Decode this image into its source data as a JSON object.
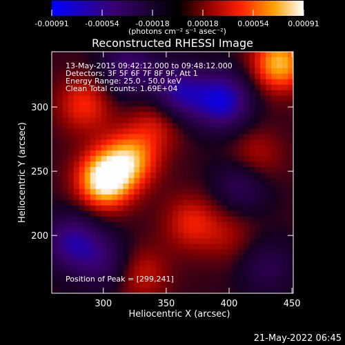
{
  "colorbar": {
    "ticks": [
      "-0.00091",
      "-0.00054",
      "-0.00018",
      "0.00018",
      "0.00054",
      "0.00091"
    ],
    "units": "(photons cm⁻² s⁻¹ asec⁻²)"
  },
  "chart_data": {
    "type": "heatmap",
    "title": "Reconstructed RHESSI Image",
    "xlabel": "Heliocentric X (arcsec)",
    "ylabel": "Heliocentric Y (arcsec)",
    "xlim": [
      259,
      451
    ],
    "ylim": [
      155,
      343
    ],
    "x_ticks": [
      300,
      350,
      400,
      450
    ],
    "y_ticks": [
      200,
      250,
      300
    ],
    "clim": [
      -0.00091,
      0.00091
    ],
    "peak": [
      299,
      241
    ],
    "annotations": [
      "13-May-2015 09:42:12.000 to 09:48:12.000",
      "Detectors: 3F 5F 6F 7F 8F 9F, Att 1",
      "Energy Range: 25.0 - 50.0 keV",
      "Clean    Total counts: 1.69E+04",
      "Position of Peak = [299,241]"
    ],
    "features": [
      {
        "x": 301,
        "y": 243,
        "value": 0.00091
      },
      {
        "x": 322,
        "y": 260,
        "value": 0.0006
      },
      {
        "x": 285,
        "y": 302,
        "value": 0.0004
      },
      {
        "x": 345,
        "y": 290,
        "value": 0.00035
      },
      {
        "x": 440,
        "y": 334,
        "value": 0.0007
      },
      {
        "x": 420,
        "y": 260,
        "value": 0.0003
      },
      {
        "x": 370,
        "y": 210,
        "value": 0.00035
      },
      {
        "x": 330,
        "y": 170,
        "value": 0.0003
      },
      {
        "x": 400,
        "y": 200,
        "value": 0.0002
      },
      {
        "x": 360,
        "y": 310,
        "value": -0.0007
      },
      {
        "x": 395,
        "y": 305,
        "value": -0.0008
      },
      {
        "x": 275,
        "y": 195,
        "value": -0.0006
      },
      {
        "x": 320,
        "y": 330,
        "value": -0.0005
      },
      {
        "x": 410,
        "y": 240,
        "value": -0.0004
      },
      {
        "x": 300,
        "y": 180,
        "value": -0.0004
      },
      {
        "x": 430,
        "y": 175,
        "value": -0.0003
      }
    ]
  },
  "footer": {
    "date": "21-May-2022 06:45"
  }
}
